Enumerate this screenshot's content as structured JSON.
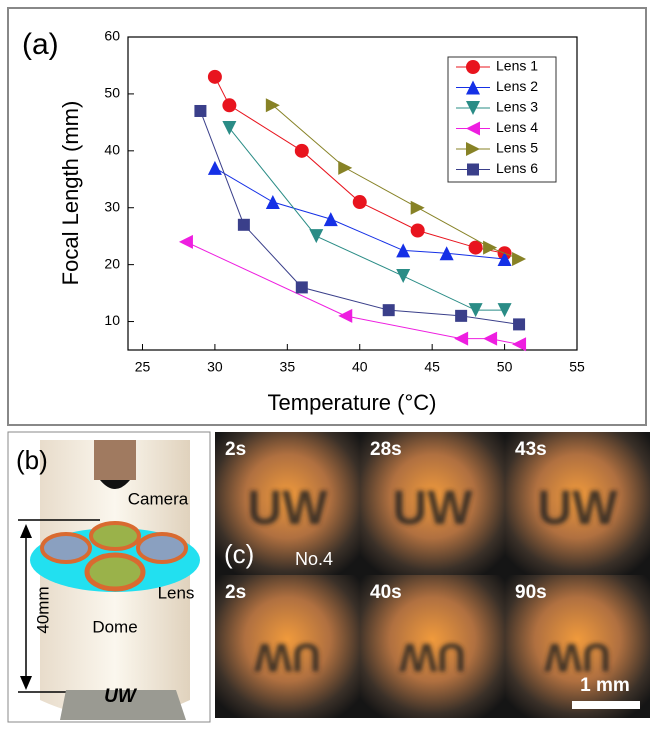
{
  "chart_data": {
    "type": "line",
    "panel_label": "(a)",
    "xlabel": "Temperature (°C)",
    "ylabel": "Focal Length (mm)",
    "xlim": [
      24,
      55
    ],
    "ylim": [
      5,
      60
    ],
    "xticks": [
      25,
      30,
      35,
      40,
      45,
      50,
      55
    ],
    "yticks": [
      10,
      20,
      30,
      40,
      50,
      60
    ],
    "legend": "upper right",
    "series": [
      {
        "name": "Lens 1",
        "color": "#e8141e",
        "marker": "circle",
        "x": [
          30,
          31,
          36,
          40,
          44,
          48,
          50
        ],
        "values": [
          53,
          48,
          40,
          31,
          26,
          23,
          22
        ]
      },
      {
        "name": "Lens 2",
        "color": "#1530e6",
        "marker": "triangle-up",
        "x": [
          30,
          34,
          38,
          43,
          46,
          50
        ],
        "values": [
          37,
          31,
          28,
          22.5,
          22,
          21
        ]
      },
      {
        "name": "Lens 3",
        "color": "#2a8c86",
        "marker": "triangle-down",
        "x": [
          31,
          37,
          43,
          48,
          50
        ],
        "values": [
          44,
          25,
          18,
          12,
          12
        ]
      },
      {
        "name": "Lens 4",
        "color": "#ee1ee0",
        "marker": "triangle-left",
        "x": [
          28,
          39,
          47,
          49,
          51
        ],
        "values": [
          24,
          11,
          7,
          7,
          6
        ]
      },
      {
        "name": "Lens 5",
        "color": "#878226",
        "marker": "triangle-right",
        "x": [
          34,
          39,
          44,
          49,
          51
        ],
        "values": [
          48,
          37,
          30,
          23,
          21
        ]
      },
      {
        "name": "Lens 6",
        "color": "#3a3f8a",
        "marker": "square",
        "x": [
          29,
          32,
          36,
          42,
          47,
          51
        ],
        "values": [
          47,
          27,
          16,
          12,
          11,
          9.5
        ]
      }
    ]
  },
  "panel_b": {
    "label": "(b)",
    "camera": "Camera",
    "lens": "Lens",
    "dome": "Dome",
    "height": "40mm",
    "target": "UW"
  },
  "panel_c": {
    "label": "(c)",
    "sample": "No.4",
    "scale": "1 mm",
    "frames": [
      {
        "time": "2s",
        "letters": "UW",
        "flipped": false
      },
      {
        "time": "28s",
        "letters": "UW",
        "flipped": false
      },
      {
        "time": "43s",
        "letters": "UW",
        "flipped": false
      },
      {
        "time": "2s",
        "letters": "UW",
        "flipped": true
      },
      {
        "time": "40s",
        "letters": "UW",
        "flipped": true
      },
      {
        "time": "90s",
        "letters": "UW",
        "flipped": true
      }
    ]
  }
}
